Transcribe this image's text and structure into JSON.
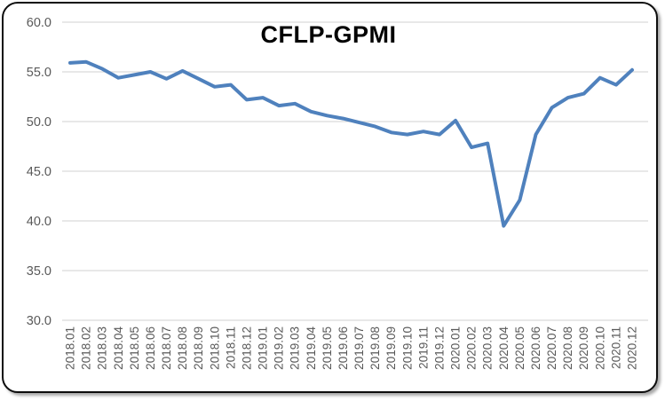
{
  "chart_data": {
    "type": "line",
    "title": "CFLP-GPMI",
    "categories": [
      "2018.01",
      "2018.02",
      "2018.03",
      "2018.04",
      "2018.05",
      "2018.06",
      "2018.07",
      "2018.08",
      "2018.09",
      "2018.10",
      "2018.11",
      "2018.12",
      "2019.01",
      "2019.02",
      "2019.03",
      "2019.04",
      "2019.05",
      "2019.06",
      "2019.07",
      "2019.08",
      "2019.09",
      "2019.10",
      "2019.11",
      "2019.12",
      "2020.01",
      "2020.02",
      "2020.03",
      "2020.04",
      "2020.05",
      "2020.06",
      "2020.07",
      "2020.08",
      "2020.09",
      "2020.10",
      "2020.11",
      "2020.12"
    ],
    "series": [
      {
        "name": "CFLP-GPMI",
        "values": [
          55.9,
          56.0,
          55.3,
          54.4,
          54.7,
          55.0,
          54.3,
          55.1,
          54.3,
          53.5,
          53.7,
          52.2,
          52.4,
          51.6,
          51.8,
          51.0,
          50.6,
          50.3,
          49.9,
          49.5,
          48.9,
          48.7,
          49.0,
          48.7,
          50.1,
          47.4,
          47.8,
          39.5,
          42.1,
          48.7,
          51.4,
          52.4,
          52.8,
          54.4,
          53.7,
          55.2
        ],
        "color": "#4F81BD"
      }
    ],
    "xlabel": "",
    "ylabel": "",
    "ylim": [
      30,
      60
    ],
    "ytick_labels": [
      "60.0",
      "55.0",
      "50.0",
      "45.0",
      "40.0",
      "35.0",
      "30.0"
    ],
    "ytick_values": [
      60,
      55,
      50,
      45,
      40,
      35,
      30
    ],
    "grid": "horizontal-only",
    "legend": "none",
    "gridline_color": "#D9D9D9",
    "axis_text_color": "#595959",
    "title_color": "#000000"
  }
}
